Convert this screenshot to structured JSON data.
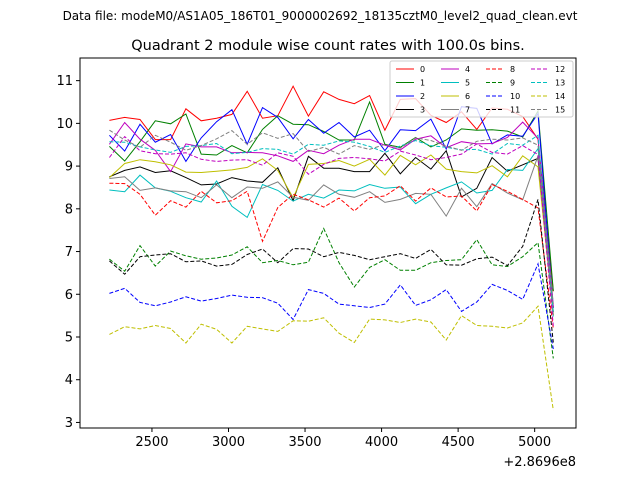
{
  "chart_data": {
    "type": "line",
    "suptitle": "Data file: modeM0/AS1A05_186T01_9000002692_18135cztM0_level2_quad_clean.evt",
    "title": "Quadrant 2 module wise count rates with 100.0s bins.",
    "xlabel": "",
    "ylabel": "",
    "x_offset_label": "+2.8696e8",
    "xlim": [
      2030,
      5270
    ],
    "ylim": [
      2.87,
      11.53
    ],
    "xticks": [
      2500,
      3000,
      3500,
      4000,
      4500,
      5000
    ],
    "xtick_labels": [
      "2500",
      "3000",
      "3500",
      "4000",
      "4500",
      "5000"
    ],
    "yticks": [
      3,
      4,
      5,
      6,
      7,
      8,
      9,
      10,
      11
    ],
    "ytick_labels": [
      "3",
      "4",
      "5",
      "6",
      "7",
      "8",
      "9",
      "10",
      "11"
    ],
    "legend_position": "top-right",
    "x": [
      2222,
      2322,
      2422,
      2522,
      2622,
      2722,
      2822,
      2922,
      3022,
      3122,
      3222,
      3322,
      3422,
      3522,
      3622,
      3722,
      3822,
      3922,
      4022,
      4122,
      4222,
      4322,
      4422,
      4522,
      4622,
      4722,
      4822,
      4922,
      5022,
      5122
    ],
    "series": [
      {
        "name": "0",
        "color": "#ff0000",
        "dash": "solid",
        "values": [
          10.07,
          10.14,
          10.09,
          9.62,
          9.62,
          10.34,
          10.06,
          10.12,
          10.21,
          10.75,
          10.12,
          10.18,
          10.87,
          10.17,
          10.74,
          10.56,
          10.46,
          10.65,
          9.84,
          10.56,
          10.58,
          10.19,
          10.02,
          10.27,
          9.86,
          10.36,
          10.33,
          10.16,
          9.63,
          6.07
        ]
      },
      {
        "name": "1",
        "color": "#008000",
        "dash": "solid",
        "values": [
          9.46,
          9.12,
          9.57,
          10.06,
          9.99,
          10.22,
          9.28,
          9.26,
          9.48,
          9.31,
          9.86,
          10.18,
          9.98,
          9.97,
          9.81,
          9.61,
          9.61,
          10.5,
          9.51,
          9.44,
          9.67,
          9.45,
          9.61,
          9.87,
          9.84,
          9.85,
          9.82,
          9.68,
          10.29,
          6.08
        ]
      },
      {
        "name": "2",
        "color": "#0000ff",
        "dash": "solid",
        "values": [
          9.72,
          9.35,
          9.98,
          9.56,
          9.74,
          9.11,
          9.66,
          10.04,
          10.32,
          9.51,
          10.37,
          10.14,
          9.64,
          10.09,
          9.77,
          10.02,
          9.68,
          9.84,
          9.36,
          9.85,
          9.83,
          10.1,
          9.4,
          10.39,
          10.35,
          9.52,
          9.73,
          9.7,
          10.23,
          5.68
        ]
      },
      {
        "name": "3",
        "color": "#000000",
        "dash": "solid",
        "values": [
          8.75,
          8.9,
          8.98,
          8.85,
          8.89,
          8.73,
          8.56,
          8.58,
          8.73,
          8.65,
          8.62,
          8.96,
          8.19,
          9.23,
          8.95,
          8.95,
          8.87,
          8.87,
          9.3,
          8.82,
          9.2,
          8.93,
          9.36,
          8.28,
          8.48,
          9.2,
          8.88,
          9.03,
          9.18,
          5.58
        ]
      },
      {
        "name": "4",
        "color": "#bf00bf",
        "dash": "solid",
        "values": [
          9.51,
          10.02,
          9.63,
          9.37,
          8.87,
          9.52,
          9.45,
          9.45,
          9.31,
          9.32,
          9.31,
          9.24,
          9.11,
          9.37,
          9.29,
          9.49,
          9.63,
          9.63,
          9.49,
          9.38,
          9.63,
          9.71,
          9.43,
          9.57,
          9.52,
          9.53,
          9.67,
          10.03,
          9.65,
          5.71
        ]
      },
      {
        "name": "5",
        "color": "#00bfbf",
        "dash": "solid",
        "values": [
          8.44,
          8.4,
          8.79,
          8.49,
          8.41,
          8.26,
          8.16,
          8.65,
          8.06,
          7.8,
          8.57,
          8.43,
          8.18,
          8.34,
          8.25,
          8.44,
          8.42,
          8.57,
          8.48,
          8.51,
          8.12,
          8.34,
          8.49,
          8.63,
          8.37,
          8.43,
          8.92,
          8.9,
          9.41,
          5.48
        ]
      },
      {
        "name": "6",
        "color": "#bfbf00",
        "dash": "solid",
        "values": [
          8.73,
          9.06,
          9.15,
          9.1,
          9.03,
          8.86,
          8.85,
          8.88,
          8.91,
          8.97,
          9.17,
          8.9,
          8.26,
          9.04,
          9.06,
          9.13,
          9.0,
          9.16,
          8.79,
          9.25,
          9.03,
          9.26,
          8.93,
          8.87,
          8.84,
          9.01,
          8.75,
          9.24,
          8.98,
          5.52
        ]
      },
      {
        "name": "7",
        "color": "#808080",
        "dash": "solid",
        "values": [
          8.71,
          8.75,
          8.43,
          8.49,
          8.42,
          8.4,
          8.26,
          8.56,
          8.26,
          8.51,
          8.48,
          8.63,
          8.27,
          8.2,
          8.56,
          8.34,
          8.27,
          8.4,
          8.15,
          8.22,
          8.36,
          8.34,
          7.83,
          8.48,
          8.05,
          8.59,
          8.37,
          8.21,
          9.24,
          5.51
        ]
      },
      {
        "name": "8",
        "color": "#ff0000",
        "dash": "dashed",
        "values": [
          8.6,
          8.59,
          8.34,
          7.85,
          8.19,
          8.04,
          8.41,
          8.14,
          8.19,
          8.41,
          7.24,
          8.03,
          8.34,
          8.21,
          8.04,
          8.25,
          7.95,
          8.26,
          8.3,
          8.54,
          8.18,
          8.49,
          8.28,
          8.3,
          7.95,
          8.57,
          8.41,
          8.22,
          8.02,
          5.2
        ]
      },
      {
        "name": "9",
        "color": "#008000",
        "dash": "dashed",
        "values": [
          6.82,
          6.54,
          7.14,
          6.66,
          7.01,
          6.9,
          6.82,
          6.85,
          6.92,
          7.11,
          6.74,
          6.79,
          6.69,
          6.75,
          7.54,
          6.74,
          6.17,
          6.63,
          6.81,
          6.56,
          6.56,
          6.74,
          6.79,
          6.81,
          7.28,
          6.69,
          6.65,
          6.88,
          7.21,
          4.5
        ]
      },
      {
        "name": "10",
        "color": "#0000ff",
        "dash": "dashed",
        "values": [
          6.02,
          6.14,
          5.81,
          5.73,
          5.82,
          5.94,
          5.84,
          5.9,
          5.98,
          5.93,
          5.92,
          5.79,
          5.41,
          6.11,
          6.02,
          5.77,
          5.73,
          5.69,
          5.77,
          6.22,
          5.74,
          5.87,
          6.11,
          5.6,
          5.82,
          6.23,
          6.09,
          5.88,
          6.71,
          4.72
        ]
      },
      {
        "name": "11",
        "color": "#000000",
        "dash": "dashed",
        "values": [
          6.78,
          6.47,
          6.88,
          6.92,
          6.95,
          6.76,
          6.78,
          6.66,
          6.7,
          6.93,
          7.06,
          6.74,
          7.07,
          7.06,
          6.88,
          6.98,
          6.91,
          6.81,
          6.88,
          6.95,
          6.84,
          7.05,
          6.69,
          6.68,
          6.83,
          6.87,
          6.67,
          7.12,
          8.22,
          4.87
        ]
      },
      {
        "name": "12",
        "color": "#bf00bf",
        "dash": "dashed",
        "values": [
          9.2,
          9.69,
          9.36,
          9.29,
          9.28,
          9.31,
          9.16,
          9.11,
          9.14,
          9.15,
          9.02,
          9.31,
          9.23,
          8.81,
          9.04,
          9.18,
          9.2,
          9.17,
          9.12,
          9.35,
          9.26,
          9.15,
          9.2,
          9.28,
          9.52,
          9.32,
          9.28,
          9.48,
          9.27,
          5.26
        ]
      },
      {
        "name": "13",
        "color": "#00bfbf",
        "dash": "dashed",
        "values": [
          9.57,
          9.56,
          9.45,
          9.38,
          9.32,
          9.46,
          9.48,
          9.53,
          9.29,
          9.32,
          9.41,
          9.39,
          9.28,
          9.51,
          9.49,
          9.59,
          9.56,
          9.46,
          9.32,
          9.47,
          9.6,
          9.48,
          9.44,
          9.38,
          9.39,
          9.28,
          9.53,
          9.49,
          9.72,
          5.58
        ]
      },
      {
        "name": "14",
        "color": "#bfbf00",
        "dash": "dashed",
        "values": [
          5.06,
          5.24,
          5.19,
          5.27,
          5.2,
          4.86,
          5.3,
          5.18,
          4.86,
          5.25,
          5.19,
          5.13,
          5.38,
          5.37,
          5.45,
          5.09,
          4.87,
          5.42,
          5.4,
          5.34,
          5.42,
          5.35,
          4.93,
          5.5,
          5.27,
          5.25,
          5.21,
          5.33,
          5.72,
          3.29
        ]
      },
      {
        "name": "15",
        "color": "#808080",
        "dash": "dashed",
        "values": [
          9.84,
          9.61,
          9.44,
          9.72,
          9.56,
          9.37,
          9.48,
          9.64,
          9.83,
          9.51,
          9.78,
          9.65,
          9.76,
          9.34,
          9.44,
          9.28,
          9.48,
          9.39,
          9.51,
          9.42,
          9.66,
          9.6,
          9.47,
          9.37,
          9.58,
          9.63,
          9.61,
          9.66,
          9.49,
          5.77
        ]
      }
    ],
    "extra_series_note": "",
    "grid": false
  }
}
